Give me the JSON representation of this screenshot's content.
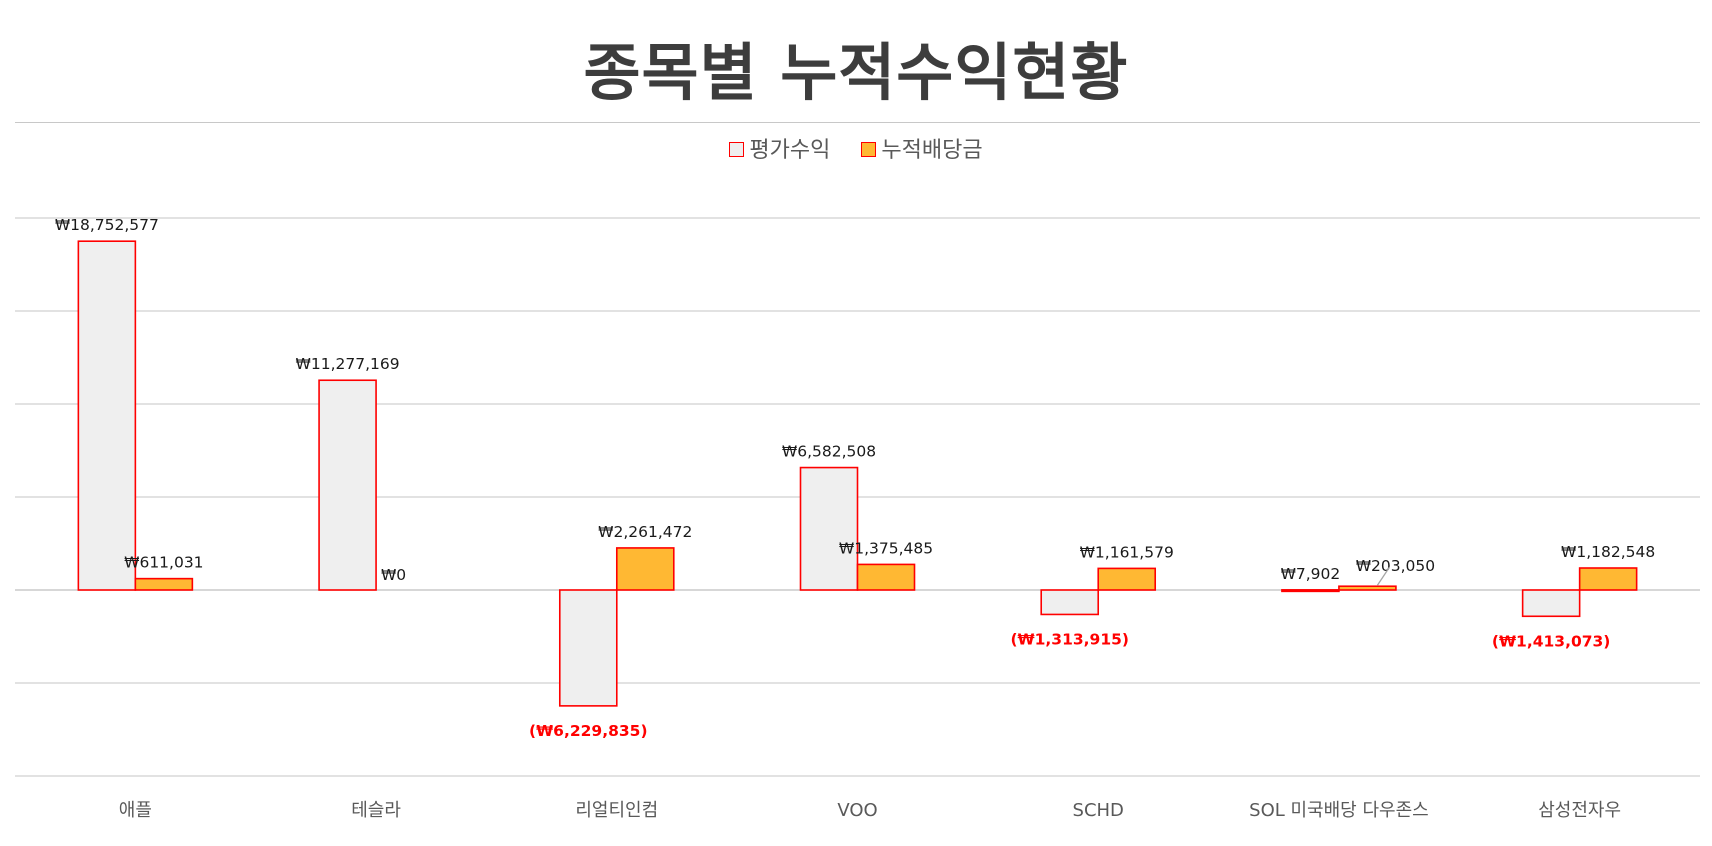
{
  "chart_data": {
    "type": "bar",
    "title": "종목별 누적수익현황",
    "categories": [
      "애플",
      "테슬라",
      "리얼티인컴",
      "VOO",
      "SCHD",
      "SOL 미국배당 다우존스",
      "삼성전자우"
    ],
    "series": [
      {
        "name": "평가수익",
        "values": [
          18752577,
          11277169,
          -6229835,
          6582508,
          -1313915,
          7902,
          -1413073
        ],
        "labels": [
          "₩18,752,577",
          "₩11,277,169",
          "(₩6,229,835)",
          "₩6,582,508",
          "(₩1,313,915)",
          "₩7,902",
          "(₩1,413,073)"
        ],
        "fill": "#efefef",
        "stroke": "#ff0000"
      },
      {
        "name": "누적배당금",
        "values": [
          611031,
          0,
          2261472,
          1375485,
          1161579,
          203050,
          1182548
        ],
        "labels": [
          "₩611,031",
          "₩0",
          "₩2,261,472",
          "₩1,375,485",
          "₩1,161,579",
          "₩203,050",
          "₩1,182,548"
        ],
        "fill": "#ffb833",
        "stroke": "#ff0000"
      }
    ],
    "ylim": [
      -10000000,
      20000000
    ],
    "y_gridline_step": 5000000,
    "grid": true,
    "legend_position": "top",
    "colors": {
      "title": "#3d3d3d",
      "negative_label": "#ff0000",
      "label": "#1a1a1a",
      "category_label": "#595959",
      "gridline": "#d0d0d0"
    }
  }
}
